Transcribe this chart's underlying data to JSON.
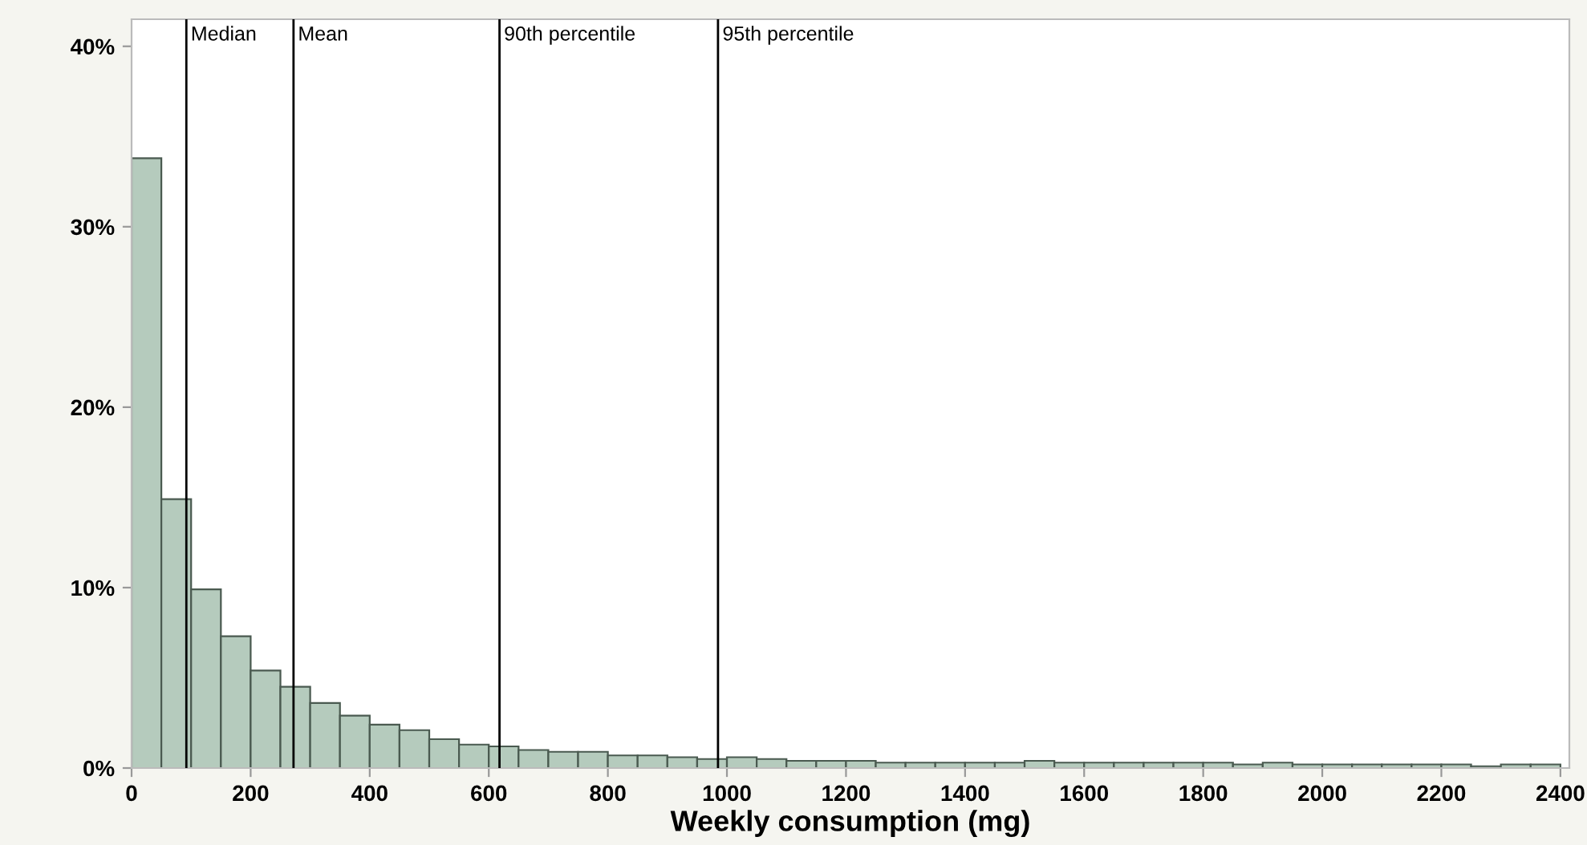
{
  "chart_data": {
    "type": "histogram",
    "xlabel": "Weekly consumption (mg)",
    "bins": [
      0,
      50,
      100,
      150,
      200,
      250,
      300,
      350,
      400,
      450,
      500,
      550,
      600,
      650,
      700,
      750,
      800,
      850,
      900,
      950,
      1000,
      1050,
      1100,
      1150,
      1200,
      1250,
      1300,
      1350,
      1400,
      1450,
      1500,
      1550,
      1600,
      1650,
      1700,
      1750,
      1800,
      1850,
      1900,
      1950,
      2000,
      2050,
      2100,
      2150,
      2200,
      2250,
      2300,
      2350,
      2400
    ],
    "values": [
      33.8,
      14.9,
      9.9,
      7.3,
      5.4,
      4.5,
      3.6,
      2.9,
      2.4,
      2.1,
      1.6,
      1.3,
      1.2,
      1.0,
      0.9,
      0.9,
      0.7,
      0.7,
      0.6,
      0.5,
      0.6,
      0.5,
      0.4,
      0.4,
      0.4,
      0.3,
      0.3,
      0.3,
      0.3,
      0.3,
      0.4,
      0.3,
      0.3,
      0.3,
      0.3,
      0.3,
      0.3,
      0.2,
      0.3,
      0.2,
      0.2,
      0.2,
      0.2,
      0.2,
      0.2,
      0.1,
      0.2,
      0.2
    ],
    "color": "#b5cbbd",
    "xlim": [
      0,
      2415
    ],
    "xticks": [
      0,
      200,
      400,
      600,
      800,
      1000,
      1200,
      1400,
      1600,
      1800,
      2000,
      2200,
      2400
    ],
    "ylim": [
      0,
      41.5
    ],
    "yticks": [
      {
        "value": 0,
        "label": "0%"
      },
      {
        "value": 10,
        "label": "10%"
      },
      {
        "value": 20,
        "label": "20%"
      },
      {
        "value": 30,
        "label": "30%"
      },
      {
        "value": 40,
        "label": "40%"
      }
    ],
    "ref_lines": [
      {
        "axis": "x",
        "value": 92,
        "label": "Median",
        "color": "#000000"
      },
      {
        "axis": "x",
        "value": 272,
        "label": "Mean",
        "color": "#000000"
      },
      {
        "axis": "x",
        "value": 618,
        "label": "90th percentile",
        "color": "#000000"
      },
      {
        "axis": "x",
        "value": 985,
        "label": "95th percentile",
        "color": "#000000"
      }
    ],
    "grid": false,
    "legend": false
  }
}
